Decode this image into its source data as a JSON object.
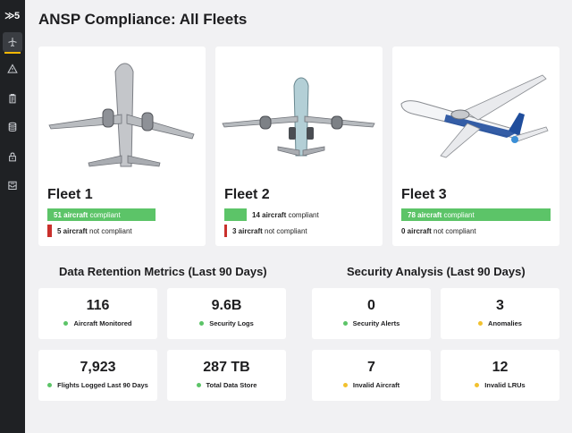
{
  "brand": {
    "logo_text": "≫5"
  },
  "sidebar": {
    "items": [
      {
        "icon": "plane-icon",
        "active": true
      },
      {
        "icon": "warning-icon",
        "active": false
      },
      {
        "icon": "clipboard-icon",
        "active": false
      },
      {
        "icon": "database-icon",
        "active": false
      },
      {
        "icon": "lock-icon",
        "active": false
      },
      {
        "icon": "inbox-icon",
        "active": false
      }
    ]
  },
  "page": {
    "title": "ANSP Compliance: All Fleets"
  },
  "fleets": [
    {
      "name": "Fleet 1",
      "compliant_count": "51 aircraft",
      "compliant_text": "compliant",
      "noncompliant_count": "5 aircraft",
      "noncompliant_text": "not compliant",
      "compliant_fraction": 0.91
    },
    {
      "name": "Fleet 2",
      "compliant_count": "14 aircraft",
      "compliant_text": "compliant",
      "noncompliant_count": "3 aircraft",
      "noncompliant_text": "not compliant",
      "compliant_fraction": 0.82
    },
    {
      "name": "Fleet 3",
      "compliant_count": "78 aircraft",
      "compliant_text": "compliant",
      "noncompliant_count": "0 aircraft",
      "noncompliant_text": "not compliant",
      "compliant_fraction": 1.0
    }
  ],
  "retention": {
    "title": "Data Retention Metrics (Last 90 Days)",
    "metrics": [
      {
        "value": "116",
        "label": "Aircraft Monitored",
        "status": "#5cc468"
      },
      {
        "value": "9.6B",
        "label": "Security Logs",
        "status": "#5cc468"
      },
      {
        "value": "7,923",
        "label": "Flights Logged Last 90 Days",
        "status": "#5cc468"
      },
      {
        "value": "287 TB",
        "label": "Total Data Store",
        "status": "#5cc468"
      }
    ]
  },
  "security": {
    "title": "Security Analysis (Last 90 Days)",
    "metrics": [
      {
        "value": "0",
        "label": "Security Alerts",
        "status": "#5cc468"
      },
      {
        "value": "3",
        "label": "Anomalies",
        "status": "#f2c12e"
      },
      {
        "value": "7",
        "label": "Invalid Aircraft",
        "status": "#f2c12e"
      },
      {
        "value": "12",
        "label": "Invalid LRUs",
        "status": "#f2c12e"
      }
    ]
  },
  "colors": {
    "compliant": "#5cc468",
    "noncompliant": "#c9302c",
    "warning": "#f2c12e",
    "sidebar": "#1f2124",
    "accent": "#f2b705"
  }
}
